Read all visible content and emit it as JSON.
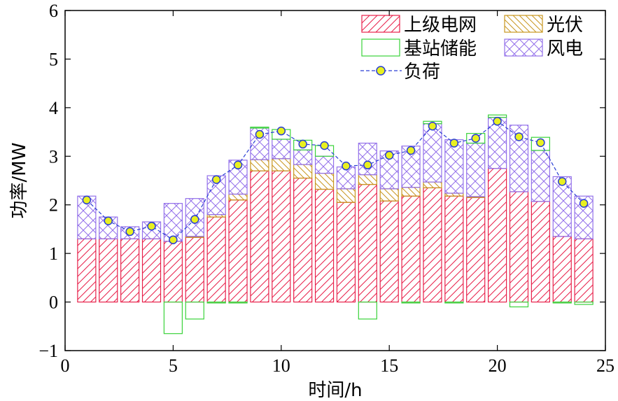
{
  "chart_data": {
    "type": "bar",
    "xlabel": "时间/h",
    "ylabel": "功率/MW",
    "xlim": [
      0,
      25
    ],
    "ylim": [
      -1,
      6
    ],
    "xticks": [
      0,
      5,
      10,
      15,
      20,
      25
    ],
    "yticks": [
      -1,
      0,
      1,
      2,
      3,
      4,
      5,
      6
    ],
    "grid": false,
    "legend_position": "top-right",
    "x": [
      1,
      2,
      3,
      4,
      5,
      6,
      7,
      8,
      9,
      10,
      11,
      12,
      13,
      14,
      15,
      16,
      17,
      18,
      19,
      20,
      21,
      22,
      23,
      24
    ],
    "series": [
      {
        "name": "上级电网",
        "color": "#e8204a",
        "pattern": "diagonal",
        "values": [
          1.3,
          1.3,
          1.3,
          1.3,
          1.25,
          1.33,
          1.75,
          2.1,
          2.7,
          2.7,
          2.55,
          2.32,
          2.05,
          2.42,
          2.08,
          2.18,
          2.35,
          2.18,
          2.15,
          2.75,
          2.27,
          2.07,
          1.35,
          1.3
        ]
      },
      {
        "name": "光伏",
        "color": "#c8961e",
        "pattern": "diagonal-reverse",
        "values": [
          0,
          0,
          0,
          0,
          0,
          0.02,
          0.05,
          0.12,
          0.23,
          0.25,
          0.28,
          0.33,
          0.28,
          0.2,
          0.25,
          0.18,
          0.12,
          0.06,
          0.02,
          0,
          0,
          0,
          0,
          0
        ]
      },
      {
        "name": "风电",
        "color": "#9370ea",
        "pattern": "crosshatch",
        "values": [
          0.88,
          0.45,
          0.25,
          0.35,
          0.78,
          0.78,
          0.8,
          0.7,
          0.65,
          0.4,
          0.3,
          0.35,
          0.45,
          0.65,
          0.78,
          0.85,
          1.2,
          1.1,
          1.1,
          1.05,
          1.37,
          1.05,
          1.23,
          0.88
        ]
      },
      {
        "name": "基站储能",
        "color": "#3ad33a",
        "pattern": "none",
        "values": [
          0,
          0,
          0,
          0,
          -0.65,
          -0.35,
          -0.02,
          -0.02,
          0.02,
          0.2,
          0.2,
          0.22,
          0,
          -0.35,
          0,
          -0.02,
          0.05,
          -0.02,
          0.2,
          0.05,
          -0.1,
          0.27,
          -0.02,
          -0.05
        ]
      },
      {
        "name": "负荷",
        "type": "line",
        "color": "#2a3fd4",
        "marker_color": "#e8f020",
        "values": [
          2.1,
          1.67,
          1.45,
          1.56,
          1.28,
          1.7,
          2.52,
          2.82,
          3.45,
          3.52,
          3.25,
          3.22,
          2.8,
          2.82,
          3.02,
          3.12,
          3.62,
          3.27,
          3.37,
          3.72,
          3.4,
          3.28,
          2.48,
          2.03
        ]
      }
    ]
  }
}
